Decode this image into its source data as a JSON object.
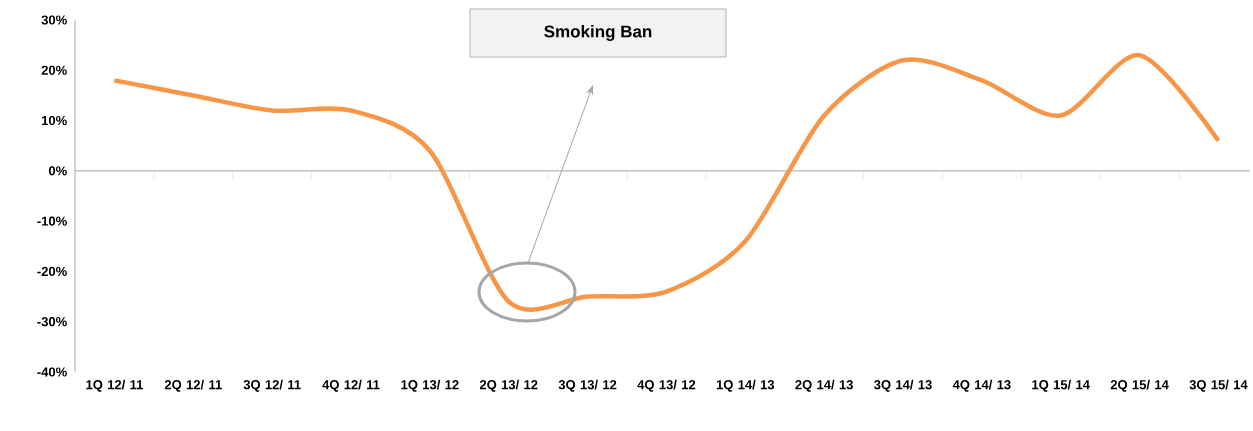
{
  "chart_data": {
    "type": "line",
    "categories": [
      "1Q 12/ 11",
      "2Q 12/ 11",
      "3Q 12/ 11",
      "4Q 12/ 11",
      "1Q 13/ 12",
      "2Q 13/ 12",
      "3Q 13/ 12",
      "4Q 13/ 12",
      "1Q 14/ 13",
      "2Q 14/ 13",
      "3Q 14/ 13",
      "4Q 14/ 13",
      "1Q 15/ 14",
      "2Q 15/ 14",
      "3Q 15/ 14"
    ],
    "values": [
      18,
      15,
      12,
      12,
      4,
      -26,
      -25,
      -24,
      -14,
      11,
      22,
      18,
      11,
      23,
      6
    ],
    "color": "#f79646",
    "ylim": [
      -40,
      30
    ],
    "yticks": [
      {
        "value": -40,
        "label": "-40%"
      },
      {
        "value": -30,
        "label": "-30%"
      },
      {
        "value": -20,
        "label": "-20%"
      },
      {
        "value": -10,
        "label": "-10%"
      },
      {
        "value": 0,
        "label": "0%"
      },
      {
        "value": 10,
        "label": "10%"
      },
      {
        "value": 20,
        "label": "20%"
      },
      {
        "value": 30,
        "label": "30%"
      }
    ],
    "annotations": [
      "Smoking Ban"
    ]
  }
}
